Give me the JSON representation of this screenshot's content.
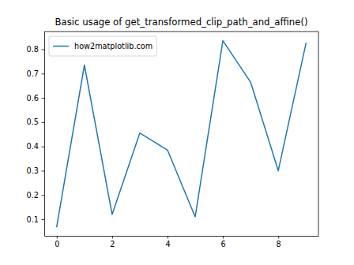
{
  "chart_data": {
    "type": "line",
    "title": "Basic usage of get_transformed_clip_path_and_affine()",
    "x": [
      0,
      1,
      2,
      3,
      4,
      5,
      6,
      7,
      8,
      9
    ],
    "series": [
      {
        "name": "how2matplotlib.com",
        "color": "#1f77b4",
        "values": [
          0.07,
          0.735,
          0.12,
          0.455,
          0.385,
          0.11,
          0.835,
          0.665,
          0.3,
          0.825
        ]
      }
    ],
    "xlim": [
      -0.45,
      9.45
    ],
    "ylim": [
      0.032,
      0.873
    ],
    "xticks": [
      0,
      2,
      4,
      6,
      8
    ],
    "yticks": [
      0.1,
      0.2,
      0.3,
      0.4,
      0.5,
      0.6,
      0.7,
      0.8
    ],
    "grid": false,
    "legend": "upper-left"
  }
}
